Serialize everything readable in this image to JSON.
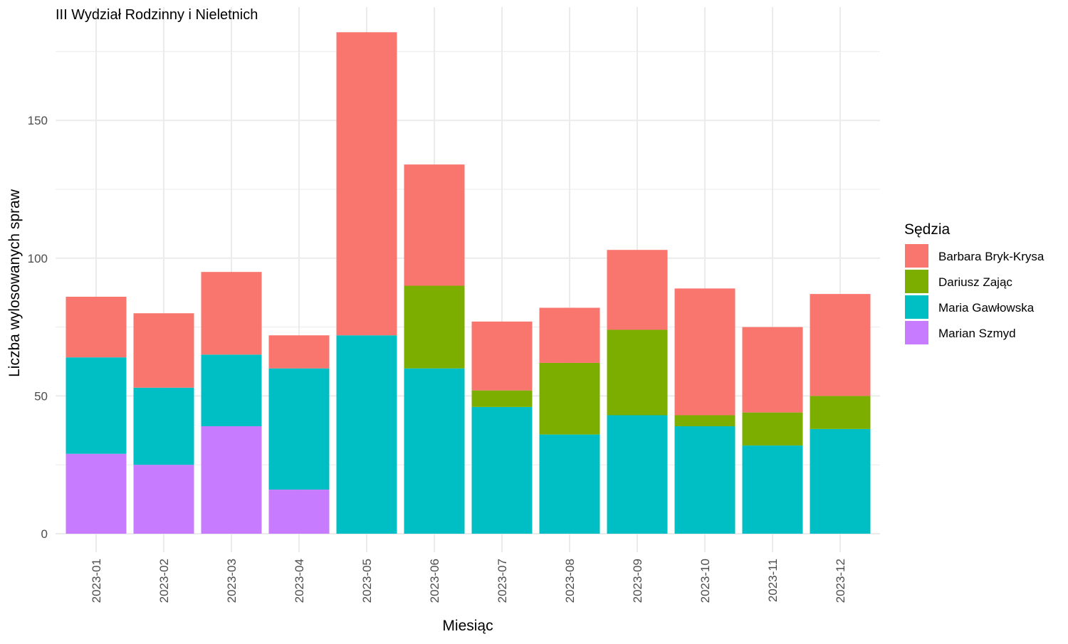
{
  "chart_data": {
    "type": "bar",
    "stacked": true,
    "title": "III Wydział Rodzinny i Nieletnich",
    "xlabel": "Miesiąc",
    "ylabel": "Liczba wylosowanych spraw",
    "ylim": [
      0,
      183
    ],
    "yticks": [
      0,
      50,
      100,
      150
    ],
    "grid": true,
    "legend_position": "right",
    "legend_title": "Sędzia",
    "categories": [
      "2023-01",
      "2023-02",
      "2023-03",
      "2023-04",
      "2023-05",
      "2023-06",
      "2023-07",
      "2023-08",
      "2023-09",
      "2023-10",
      "2023-11",
      "2023-12"
    ],
    "series": [
      {
        "name": "Marian Szmyd",
        "color": "#C77CFF",
        "values": [
          29,
          25,
          39,
          16,
          0,
          0,
          0,
          0,
          0,
          0,
          0,
          0
        ]
      },
      {
        "name": "Maria Gawłowska",
        "color": "#00BFC4",
        "values": [
          35,
          28,
          26,
          44,
          72,
          60,
          46,
          36,
          43,
          39,
          32,
          38
        ]
      },
      {
        "name": "Dariusz Zając",
        "color": "#7CAE00",
        "values": [
          0,
          0,
          0,
          0,
          0,
          30,
          6,
          26,
          31,
          4,
          12,
          12
        ]
      },
      {
        "name": "Barbara Bryk-Krysa",
        "color": "#F8766D",
        "values": [
          22,
          27,
          30,
          12,
          110,
          44,
          25,
          20,
          29,
          46,
          31,
          37
        ]
      }
    ],
    "legend_order": [
      "Barbara Bryk-Krysa",
      "Dariusz Zając",
      "Maria Gawłowska",
      "Marian Szmyd"
    ]
  }
}
